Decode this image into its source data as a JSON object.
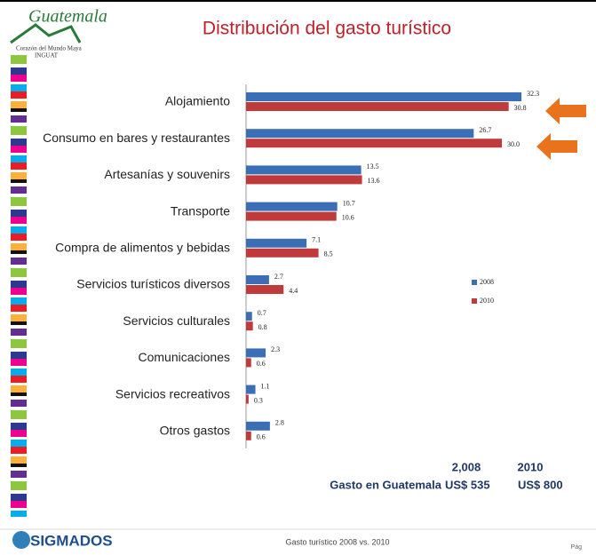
{
  "logo": {
    "name": "Guatemala",
    "tagline": "Corazón del Mundo Maya",
    "org": "INGUAT"
  },
  "chart_data": {
    "type": "hbar",
    "title": "Distribución del gasto turístico",
    "categories": [
      "Alojamiento",
      "Consumo  en bares y restaurantes",
      "Artesanías y souvenirs",
      "Transporte",
      "Compra de alimentos y bebidas",
      "Servicios turísticos diversos",
      "Servicios culturales",
      "Comunicaciones",
      "Servicios recreativos",
      "Otros gastos"
    ],
    "series": [
      {
        "name": "2008",
        "color": "#3a6fb5",
        "values": [
          32.3,
          26.7,
          13.5,
          10.7,
          7.1,
          2.7,
          0.7,
          2.3,
          1.1,
          2.8
        ]
      },
      {
        "name": "2010",
        "color": "#c0393b",
        "values": [
          30.8,
          30.0,
          13.6,
          10.6,
          8.5,
          4.4,
          0.8,
          0.6,
          0.3,
          0.6
        ],
        "value_labels": [
          "30.8",
          "30.0",
          "13.6",
          "10.6",
          "8.5",
          "4.4",
          "0.8",
          "0.6",
          "0.3",
          "0.6"
        ]
      }
    ],
    "xlim": [
      0,
      35
    ],
    "legend": "right"
  },
  "summary": {
    "years": [
      "2,008",
      "2010"
    ],
    "label": "Gasto en Guatemala",
    "amounts": [
      "US$ 535",
      "US$ 800"
    ]
  },
  "footer": {
    "brand": "SIGMADOS",
    "caption": "Gasto turístico 2008 vs. 2010",
    "page": "Pág"
  }
}
